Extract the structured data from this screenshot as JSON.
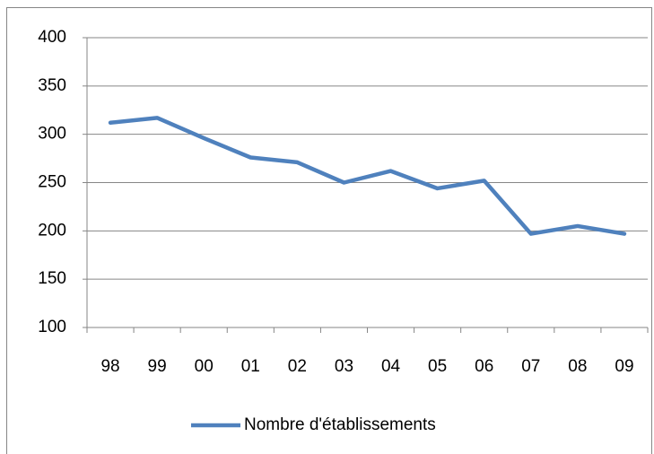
{
  "chart_data": {
    "type": "line",
    "categories": [
      "98",
      "99",
      "00",
      "01",
      "02",
      "03",
      "04",
      "05",
      "06",
      "07",
      "08",
      "09"
    ],
    "series": [
      {
        "name": "Nombre d'établissements",
        "color": "#4f81bd",
        "values": [
          312,
          317,
          296,
          276,
          271,
          250,
          262,
          244,
          252,
          197,
          205,
          197
        ]
      }
    ],
    "ylim": [
      100,
      400
    ],
    "yticks": [
      100,
      150,
      200,
      250,
      300,
      350,
      400
    ],
    "grid": true,
    "legend": "bottom"
  }
}
